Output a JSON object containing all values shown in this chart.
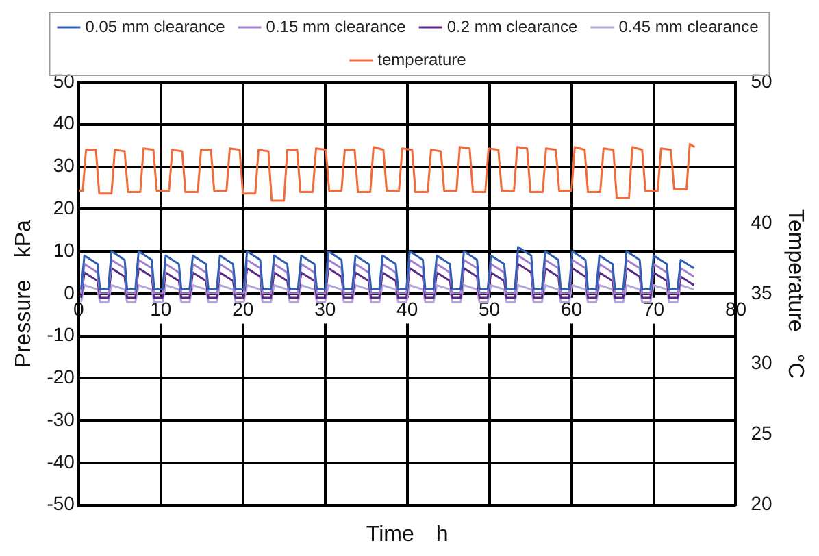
{
  "chart_data": {
    "type": "line",
    "xlabel": "Time　h",
    "ylabel": "Pressure　kPa",
    "y2label": "Temperature　°C",
    "xlim": [
      0,
      80
    ],
    "xticks": [
      0,
      10,
      20,
      30,
      40,
      50,
      60,
      70,
      80
    ],
    "ylim": [
      -50,
      50
    ],
    "yticks": [
      -50,
      -40,
      -30,
      -20,
      -10,
      0,
      10,
      20,
      30,
      40,
      50
    ],
    "y2lim": [
      20,
      50
    ],
    "y2ticks": [
      20,
      25,
      30,
      35,
      40,
      50
    ],
    "grid": true,
    "legend": "top",
    "x": [
      0.3,
      0.7,
      2.3,
      2.6,
      3.6,
      4.0,
      5.6,
      5.9,
      6.9,
      7.3,
      8.9,
      9.2,
      10.2,
      10.6,
      12.2,
      12.5,
      13.5,
      13.9,
      15.5,
      15.8,
      16.8,
      17.2,
      18.8,
      19.1,
      20.1,
      20.5,
      22.1,
      22.4,
      23.4,
      23.8,
      25.4,
      25.7,
      26.7,
      27.1,
      28.7,
      29.0,
      30.0,
      30.4,
      32.0,
      32.3,
      33.3,
      33.7,
      35.3,
      35.6,
      36.6,
      37.0,
      38.6,
      38.9,
      39.9,
      40.3,
      41.9,
      42.2,
      43.2,
      43.6,
      45.2,
      45.5,
      46.5,
      46.9,
      48.5,
      48.8,
      49.8,
      50.2,
      51.8,
      52.1,
      53.1,
      53.5,
      55.1,
      55.4,
      56.4,
      56.8,
      58.4,
      58.7,
      59.7,
      60.1,
      61.7,
      62.0,
      63.0,
      63.4,
      65.0,
      65.3,
      66.3,
      66.7,
      68.3,
      68.6,
      69.6,
      70.0,
      71.6,
      71.9,
      72.9,
      73.3,
      74.9
    ],
    "series": [
      {
        "name": "0.05 mm clearance",
        "color": "#2f5fb3",
        "values": [
          1,
          9,
          7,
          1,
          1,
          10,
          8,
          1,
          1,
          10,
          8,
          1,
          1,
          9,
          7,
          1,
          1,
          9,
          7,
          1,
          1,
          9,
          7,
          1,
          1,
          10,
          8,
          1,
          1,
          9,
          7,
          1,
          1,
          9,
          7,
          1,
          1,
          10,
          8,
          1,
          1,
          9,
          7,
          1,
          1,
          9,
          7,
          1,
          1,
          10,
          8,
          1,
          1,
          9,
          7,
          1,
          1,
          10,
          8,
          1,
          1,
          9,
          7,
          1,
          1,
          11,
          9,
          1,
          1,
          10,
          8,
          1,
          1,
          10,
          8,
          1,
          1,
          9,
          7,
          1,
          1,
          10,
          8,
          1,
          1,
          9,
          7,
          1,
          1,
          8,
          6
        ]
      },
      {
        "name": "0.15 mm clearance",
        "color": "#a47fd0",
        "values": [
          0,
          7,
          5,
          0,
          0,
          8,
          6,
          0,
          0,
          8,
          6,
          0,
          0,
          7,
          5,
          0,
          0,
          7,
          5,
          0,
          0,
          7,
          5,
          0,
          0,
          8,
          6,
          0,
          0,
          7,
          5,
          0,
          0,
          7,
          5,
          0,
          0,
          8,
          6,
          0,
          0,
          7,
          5,
          0,
          0,
          7,
          5,
          0,
          0,
          8,
          6,
          0,
          0,
          7,
          5,
          0,
          0,
          8,
          6,
          0,
          0,
          7,
          5,
          0,
          0,
          9,
          7,
          0,
          0,
          8,
          6,
          0,
          0,
          8,
          6,
          0,
          0,
          7,
          5,
          0,
          0,
          8,
          6,
          0,
          0,
          7,
          5,
          0,
          0,
          6,
          4
        ]
      },
      {
        "name": "0.2 mm clearance",
        "color": "#5b2a86",
        "values": [
          -1,
          5,
          3,
          -1,
          -1,
          6,
          4,
          -1,
          -1,
          6,
          4,
          -1,
          -1,
          5,
          3,
          -1,
          -1,
          5,
          3,
          -1,
          -1,
          5,
          3,
          -1,
          -1,
          6,
          4,
          -1,
          -1,
          5,
          3,
          -1,
          -1,
          5,
          3,
          -1,
          -1,
          6,
          4,
          -1,
          -1,
          5,
          3,
          -1,
          -1,
          5,
          3,
          -1,
          -1,
          6,
          4,
          -1,
          -1,
          5,
          3,
          -1,
          -1,
          6,
          4,
          -1,
          -1,
          5,
          3,
          -1,
          -1,
          7,
          5,
          -1,
          -1,
          6,
          4,
          -1,
          -1,
          6,
          4,
          -1,
          -1,
          5,
          3,
          -1,
          -1,
          6,
          4,
          -1,
          -1,
          5,
          3,
          -1,
          -1,
          4,
          2
        ]
      },
      {
        "name": "0.45 mm clearance",
        "color": "#b3a6dc",
        "values": [
          -2,
          2,
          1,
          -2,
          -2,
          2,
          1,
          -2,
          -2,
          2,
          1,
          -2,
          -2,
          2,
          1,
          -2,
          -2,
          2,
          1,
          -2,
          -2,
          2,
          1,
          -2,
          -2,
          2,
          1,
          -2,
          -2,
          2,
          1,
          -2,
          -2,
          2,
          1,
          -2,
          -2,
          2,
          1,
          -2,
          -2,
          2,
          1,
          -2,
          -2,
          2,
          1,
          -2,
          -2,
          2,
          1,
          -2,
          -2,
          2,
          1,
          -2,
          -2,
          2,
          1,
          -2,
          -2,
          2,
          1,
          -2,
          -2,
          2,
          1,
          -2,
          -2,
          2,
          1,
          -2,
          -2,
          2,
          1,
          -2,
          -2,
          2,
          1,
          -2,
          -2,
          2,
          1,
          -2,
          -2,
          2,
          1,
          -2,
          -2,
          2,
          1
        ]
      },
      {
        "name": "temperature",
        "color": "#f26b3a",
        "axis": "y2",
        "x": [
          0,
          0.5,
          0.9,
          2.1,
          2.5,
          4.0,
          4.4,
          5.6,
          6.0,
          7.5,
          7.9,
          9.1,
          9.5,
          11.0,
          11.4,
          12.6,
          13.0,
          14.5,
          14.9,
          16.1,
          16.5,
          18.0,
          18.4,
          19.6,
          20.0,
          21.5,
          21.9,
          23.1,
          23.5,
          25.0,
          25.4,
          26.6,
          27.0,
          28.5,
          28.9,
          30.1,
          30.5,
          32.0,
          32.4,
          33.6,
          34.0,
          35.5,
          35.9,
          37.1,
          37.5,
          39.0,
          39.4,
          40.6,
          41.0,
          42.5,
          42.9,
          44.1,
          44.5,
          46.0,
          46.4,
          47.6,
          48.0,
          49.5,
          49.9,
          51.1,
          51.5,
          53.0,
          53.4,
          54.6,
          55.0,
          56.5,
          56.9,
          58.1,
          58.5,
          60.0,
          60.4,
          61.6,
          62.0,
          63.5,
          63.9,
          65.1,
          65.5,
          67.0,
          67.4,
          68.6,
          69.0,
          70.5,
          70.9,
          72.1,
          72.5,
          74.0,
          74.4,
          75.0
        ],
        "values": [
          42.3,
          42.3,
          45.2,
          45.2,
          42.1,
          42.1,
          45.2,
          45.1,
          42.2,
          42.2,
          45.3,
          45.2,
          42.3,
          42.3,
          45.2,
          45.1,
          42.2,
          42.2,
          45.2,
          45.2,
          42.3,
          42.3,
          45.3,
          45.2,
          42.1,
          42.1,
          45.2,
          45.1,
          41.6,
          41.6,
          45.2,
          45.2,
          42.2,
          42.2,
          45.3,
          45.2,
          42.3,
          42.3,
          45.2,
          45.2,
          42.2,
          42.2,
          45.4,
          45.2,
          42.3,
          42.3,
          45.3,
          45.2,
          42.2,
          42.2,
          45.2,
          45.1,
          42.3,
          42.3,
          45.4,
          45.3,
          42.2,
          42.2,
          45.3,
          45.2,
          42.3,
          42.3,
          45.4,
          45.3,
          42.2,
          42.2,
          45.3,
          45.2,
          42.3,
          42.3,
          45.4,
          45.2,
          42.2,
          42.2,
          45.3,
          45.2,
          41.8,
          41.8,
          45.4,
          45.2,
          42.3,
          42.3,
          45.3,
          45.2,
          42.4,
          42.4,
          45.6,
          45.4
        ]
      }
    ]
  }
}
